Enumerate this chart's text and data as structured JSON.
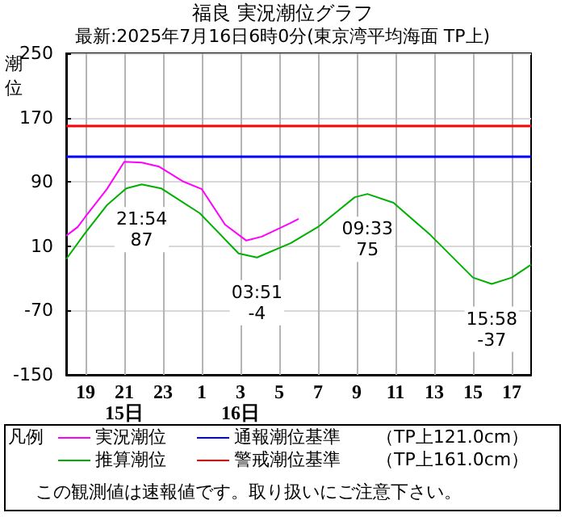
{
  "chart_data": {
    "type": "line",
    "title": "福良 実況潮位グラフ",
    "subtitle": "最新:2025年7月16日6時0分(東京湾平均海面 TP上)",
    "ylabel": "潮位",
    "legend_title": "凡例",
    "legend": "bottom",
    "x": [
      "2025-07-15T18:00",
      "2025-07-15T18:36",
      "2025-07-15T19:00",
      "2025-07-15T20:06",
      "2025-07-15T21:00",
      "2025-07-15T21:54",
      "2025-07-15T22:48",
      "2025-07-16T00:00",
      "2025-07-16T01:00",
      "2025-07-16T02:12",
      "2025-07-16T03:18",
      "2025-07-16T04:06",
      "2025-07-16T05:36",
      "2025-07-16T06:00"
    ],
    "series": [
      {
        "name": "実況潮位",
        "color": "#ff00ff",
        "values": [
          23,
          34,
          47,
          81,
          115,
          114,
          109,
          91,
          81,
          37,
          17,
          22,
          39,
          44
        ]
      },
      {
        "name": "推算潮位",
        "color": "#00b000",
        "x": [
          "2025-07-15T18:00",
          "2025-07-15T19:00",
          "2025-07-15T20:06",
          "2025-07-15T21:06",
          "2025-07-15T21:54",
          "2025-07-15T22:54",
          "2025-07-16T00:54",
          "2025-07-16T02:54",
          "2025-07-16T03:51",
          "2025-07-16T05:36",
          "2025-07-16T07:00",
          "2025-07-16T08:54",
          "2025-07-16T09:33",
          "2025-07-16T10:54",
          "2025-07-16T12:48",
          "2025-07-16T15:00",
          "2025-07-16T15:58",
          "2025-07-16T17:00",
          "2025-07-16T18:00"
        ],
        "values": [
          -6,
          27,
          61,
          82,
          87,
          82,
          51,
          1,
          -4,
          14,
          34,
          71,
          75,
          64,
          24,
          -29,
          -37,
          -29,
          -13
        ]
      }
    ],
    "ref_lines": [
      {
        "axis": "y",
        "value": 121,
        "label": "通報潮位基準　　（TP上121.0cm）",
        "color": "#0000ff"
      },
      {
        "axis": "y",
        "value": 161,
        "label": "警戒潮位基準　　（TP上161.0cm）",
        "color": "#ff0000"
      }
    ],
    "xlim": [
      "2025-07-15T18:00",
      "2025-07-16T18:00"
    ],
    "xticks": [
      {
        "value": "2025-07-15T19:00",
        "label": "19"
      },
      {
        "value": "2025-07-15T21:00",
        "label": "21\n15日"
      },
      {
        "value": "2025-07-15T23:00",
        "label": "23"
      },
      {
        "value": "2025-07-16T01:00",
        "label": "1"
      },
      {
        "value": "2025-07-16T03:00",
        "label": "3\n16日"
      },
      {
        "value": "2025-07-16T05:00",
        "label": "5"
      },
      {
        "value": "2025-07-16T07:00",
        "label": "7"
      },
      {
        "value": "2025-07-16T09:00",
        "label": "9"
      },
      {
        "value": "2025-07-16T11:00",
        "label": "11"
      },
      {
        "value": "2025-07-16T13:00",
        "label": "13"
      },
      {
        "value": "2025-07-16T15:00",
        "label": "15"
      },
      {
        "value": "2025-07-16T17:00",
        "label": "17"
      }
    ],
    "ylim": [
      -150,
      250
    ],
    "yticks": [
      -150,
      -70,
      10,
      90,
      170,
      250
    ],
    "grid": true,
    "marker": "none",
    "line_style": "solid",
    "annotations": [
      {
        "text": "21:54\n87",
        "x": "2025-07-15T21:54",
        "y": 87
      },
      {
        "text": "03:51\n-4",
        "x": "2025-07-16T03:51",
        "y": -4
      },
      {
        "text": "09:33\n75",
        "x": "2025-07-16T09:33",
        "y": 75
      },
      {
        "text": "15:58\n-37",
        "x": "2025-07-16T15:58",
        "y": -37
      },
      "この観測値は速報値です。取り扱いにご注意下さい。"
    ]
  }
}
